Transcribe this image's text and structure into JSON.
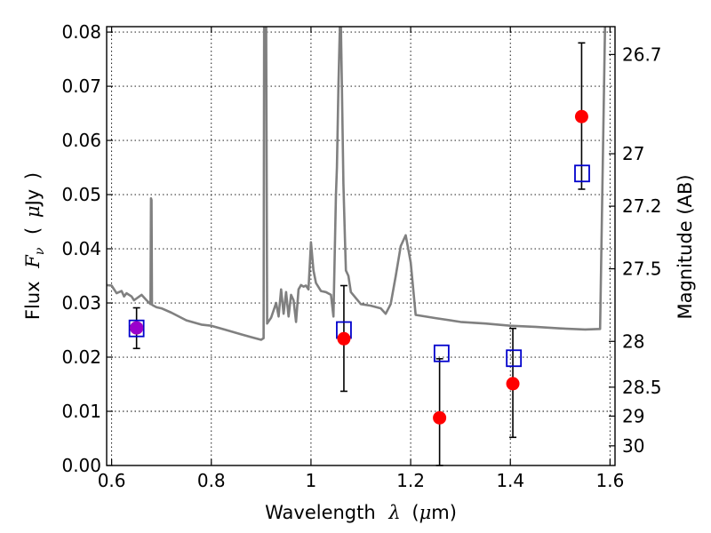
{
  "chart_data": {
    "type": "scatter",
    "xlabel_parts": [
      "Wavelength",
      "λ",
      "(",
      "μ",
      "m)"
    ],
    "ylabel_parts": [
      "Flux",
      "F",
      "ν",
      "(",
      "μ",
      "Jy",
      ")"
    ],
    "y2label": "Magnitude (AB)",
    "xlim": [
      0.59,
      1.61
    ],
    "ylim": [
      0.0,
      0.081
    ],
    "x_ticks": [
      0.6,
      0.8,
      1.0,
      1.2,
      1.4,
      1.6
    ],
    "x_tick_labels": [
      "0.6",
      "0.8",
      "1",
      "1.2",
      "1.4",
      "1.6"
    ],
    "y_ticks": [
      0.0,
      0.01,
      0.02,
      0.03,
      0.04,
      0.05,
      0.06,
      0.07,
      0.08
    ],
    "y_tick_labels": [
      "0.00",
      "0.01",
      "0.02",
      "0.03",
      "0.04",
      "0.05",
      "0.06",
      "0.07",
      "0.08"
    ],
    "y2_ticks": [
      26.7,
      27,
      27.2,
      27.5,
      28,
      28.5,
      29,
      30
    ],
    "y2_tick_labels": [
      "26.7",
      "27",
      "27.2",
      "27.5",
      "28",
      "28.5",
      "29",
      "30"
    ],
    "grid": true,
    "series": [
      {
        "name": "model spectrum",
        "kind": "line",
        "color": "#808080",
        "x": [
          0.59,
          0.6,
          0.61,
          0.62,
          0.625,
          0.63,
          0.64,
          0.645,
          0.66,
          0.67,
          0.678,
          0.679,
          0.68,
          0.681,
          0.682,
          0.69,
          0.7,
          0.72,
          0.75,
          0.78,
          0.8,
          0.83,
          0.86,
          0.88,
          0.9,
          0.905,
          0.906,
          0.908,
          0.91,
          0.912,
          0.92,
          0.93,
          0.935,
          0.94,
          0.945,
          0.95,
          0.955,
          0.96,
          0.965,
          0.97,
          0.975,
          0.98,
          0.985,
          0.99,
          0.995,
          1.0,
          1.005,
          1.01,
          1.02,
          1.03,
          1.04,
          1.045,
          1.05,
          1.052,
          1.055,
          1.058,
          1.06,
          1.062,
          1.065,
          1.068,
          1.07,
          1.075,
          1.08,
          1.1,
          1.12,
          1.14,
          1.15,
          1.16,
          1.17,
          1.18,
          1.19,
          1.2,
          1.21,
          1.25,
          1.3,
          1.35,
          1.4,
          1.45,
          1.5,
          1.55,
          1.58,
          1.59,
          1.61
        ],
        "y": [
          0.0333,
          0.0332,
          0.0318,
          0.0322,
          0.0312,
          0.0318,
          0.0312,
          0.0305,
          0.0315,
          0.0305,
          0.0298,
          0.0493,
          0.049,
          0.0297,
          0.0296,
          0.0292,
          0.029,
          0.0282,
          0.0268,
          0.026,
          0.0258,
          0.025,
          0.0242,
          0.0237,
          0.0232,
          0.0235,
          0.081,
          0.081,
          0.081,
          0.0262,
          0.0273,
          0.03,
          0.0275,
          0.0325,
          0.028,
          0.032,
          0.0275,
          0.0315,
          0.0305,
          0.0265,
          0.0325,
          0.0333,
          0.033,
          0.0332,
          0.0325,
          0.0412,
          0.036,
          0.0337,
          0.0322,
          0.032,
          0.0315,
          0.0275,
          0.05,
          0.055,
          0.07,
          0.081,
          0.081,
          0.07,
          0.052,
          0.042,
          0.036,
          0.035,
          0.032,
          0.0298,
          0.0295,
          0.029,
          0.028,
          0.0298,
          0.035,
          0.0405,
          0.0425,
          0.0375,
          0.0278,
          0.0272,
          0.0265,
          0.0262,
          0.0258,
          0.0256,
          0.0253,
          0.0251,
          0.0252,
          0.0815,
          0.0815
        ]
      },
      {
        "name": "observed photometry",
        "kind": "scatter",
        "marker": "circle",
        "color": "#ff0000",
        "x": [
          0.65,
          1.066,
          1.258,
          1.405,
          1.543
        ],
        "y": [
          0.0254,
          0.0234,
          0.0088,
          0.0151,
          0.0644
        ]
      },
      {
        "name": "error bars",
        "kind": "errorbar",
        "color": "#000000",
        "x": [
          0.65,
          1.066,
          1.258,
          1.405,
          1.543
        ],
        "low": [
          0.0216,
          0.0137,
          0.0,
          0.0052,
          0.051
        ],
        "high": [
          0.0291,
          0.0332,
          0.0197,
          0.0253,
          0.078
        ]
      },
      {
        "name": "model photometry",
        "kind": "scatter",
        "marker": "open-square",
        "color": "#0000cc",
        "x": [
          0.65,
          1.066,
          1.262,
          1.407,
          1.544
        ],
        "y": [
          0.0253,
          0.025,
          0.0207,
          0.0198,
          0.0539
        ]
      },
      {
        "name": "blended point",
        "kind": "scatter",
        "marker": "circle",
        "color": "#9900cc",
        "x": [
          0.65
        ],
        "y": [
          0.0254
        ]
      }
    ]
  }
}
